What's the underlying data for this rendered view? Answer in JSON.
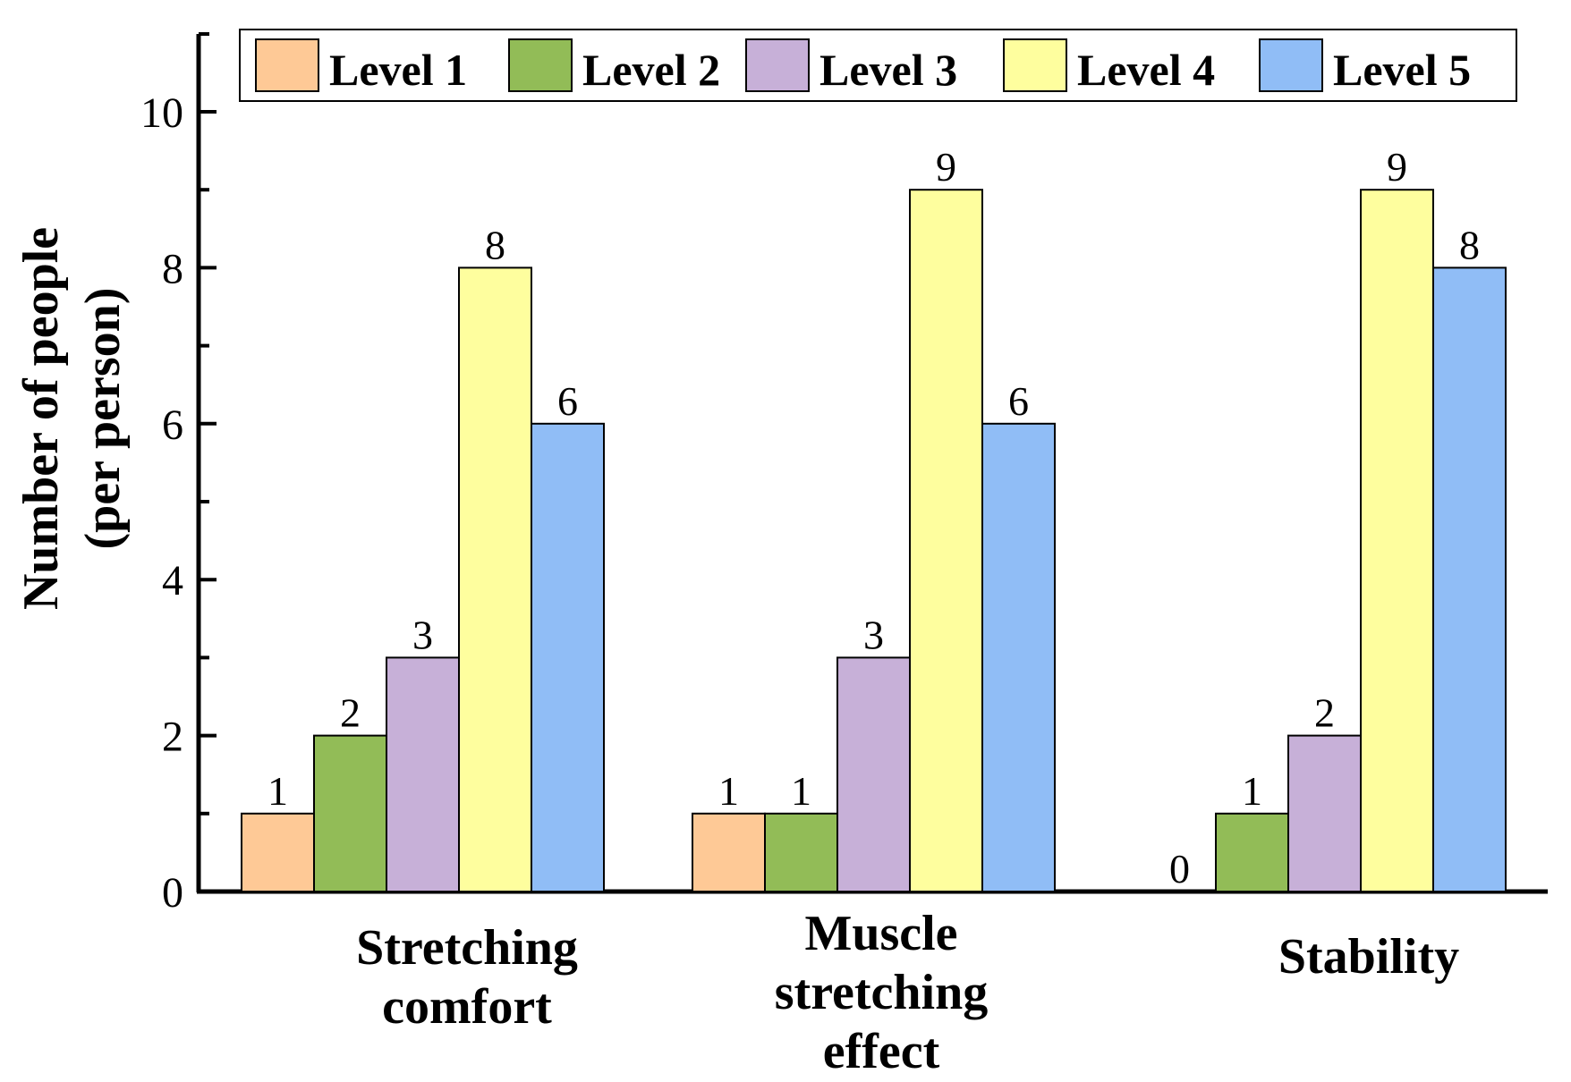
{
  "chart_data": {
    "type": "bar",
    "title": "",
    "xlabel": "",
    "ylabel": "Number of people\n(per person)",
    "ylabel_lines": [
      "Number of people",
      "(per person)"
    ],
    "ylim": [
      0,
      11
    ],
    "yticks": [
      0,
      2,
      4,
      6,
      8,
      10
    ],
    "grid": false,
    "legend_position": "top",
    "categories": [
      "Stretching comfort",
      "Muscle stretching effect",
      "Stability"
    ],
    "category_lines": [
      [
        "Stretching",
        "comfort"
      ],
      [
        "Muscle",
        "stretching",
        "effect"
      ],
      [
        "Stability"
      ]
    ],
    "series": [
      {
        "name": "Level 1",
        "color": "#FEC996",
        "values": [
          1,
          1,
          0
        ]
      },
      {
        "name": "Level 2",
        "color": "#92BC57",
        "values": [
          2,
          1,
          1
        ]
      },
      {
        "name": "Level 3",
        "color": "#C7B0D8",
        "values": [
          3,
          3,
          2
        ]
      },
      {
        "name": "Level 4",
        "color": "#FEFE9E",
        "values": [
          8,
          9,
          9
        ]
      },
      {
        "name": "Level 5",
        "color": "#90BDF6",
        "values": [
          6,
          6,
          8
        ]
      }
    ]
  }
}
